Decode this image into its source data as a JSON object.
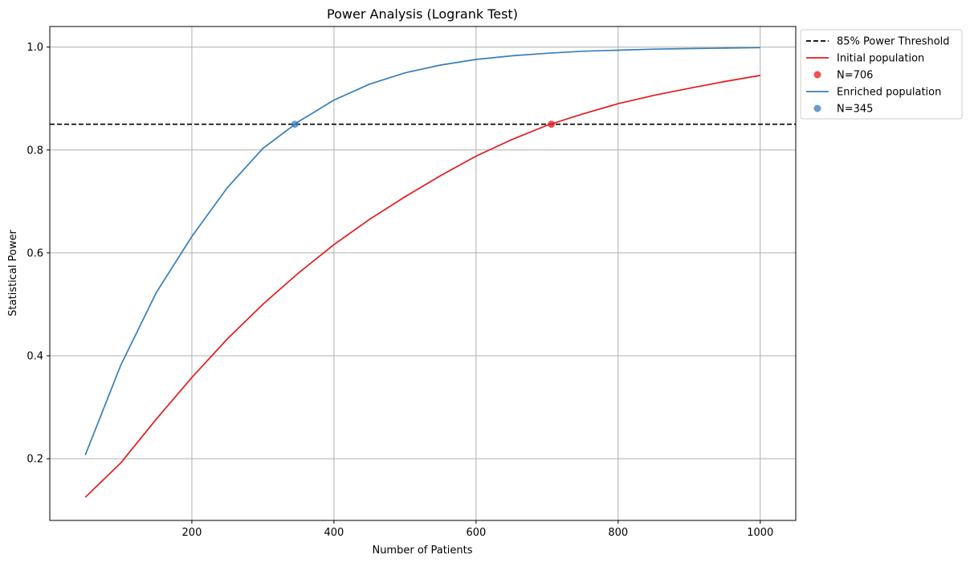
{
  "chart_data": {
    "type": "line",
    "title": "Power Analysis (Logrank Test)",
    "xlabel": "Number of Patients",
    "ylabel": "Statistical Power",
    "xlim": [
      0,
      1050
    ],
    "ylim": [
      0.08,
      1.04
    ],
    "xticks": [
      200,
      400,
      600,
      800,
      1000
    ],
    "yticks": [
      0.2,
      0.4,
      0.6,
      0.8,
      1.0
    ],
    "xtick_labels": [
      "200",
      "400",
      "600",
      "800",
      "1000"
    ],
    "ytick_labels": [
      "0.2",
      "0.4",
      "0.6",
      "0.8",
      "1.0"
    ],
    "grid": true,
    "legend_position": "outside-top-right",
    "threshold": {
      "name": "85% Power Threshold",
      "value": 0.85,
      "color": "#000000",
      "style": "dashed"
    },
    "series": [
      {
        "name": "Initial population",
        "color": "#e41a1c",
        "x": [
          50,
          100,
          150,
          200,
          250,
          300,
          350,
          400,
          450,
          500,
          550,
          600,
          650,
          700,
          750,
          800,
          850,
          900,
          950,
          1000
        ],
        "y": [
          0.125,
          0.192,
          0.277,
          0.358,
          0.433,
          0.5,
          0.561,
          0.616,
          0.665,
          0.709,
          0.75,
          0.788,
          0.82,
          0.848,
          0.87,
          0.89,
          0.906,
          0.92,
          0.933,
          0.945
        ]
      },
      {
        "name": "Enriched population",
        "color": "#377eb8",
        "x": [
          50,
          100,
          150,
          200,
          250,
          300,
          350,
          400,
          450,
          500,
          550,
          600,
          650,
          700,
          750,
          800,
          850,
          900,
          950,
          1000
        ],
        "y": [
          0.207,
          0.382,
          0.523,
          0.632,
          0.727,
          0.803,
          0.855,
          0.897,
          0.928,
          0.95,
          0.965,
          0.976,
          0.983,
          0.988,
          0.992,
          0.994,
          0.996,
          0.997,
          0.998,
          0.999
        ]
      }
    ],
    "markers": [
      {
        "label": "N=706",
        "x": 706,
        "y": 0.85,
        "color": "#e41a1c"
      },
      {
        "label": "N=345",
        "x": 345,
        "y": 0.85,
        "color": "#377eb8"
      }
    ]
  }
}
